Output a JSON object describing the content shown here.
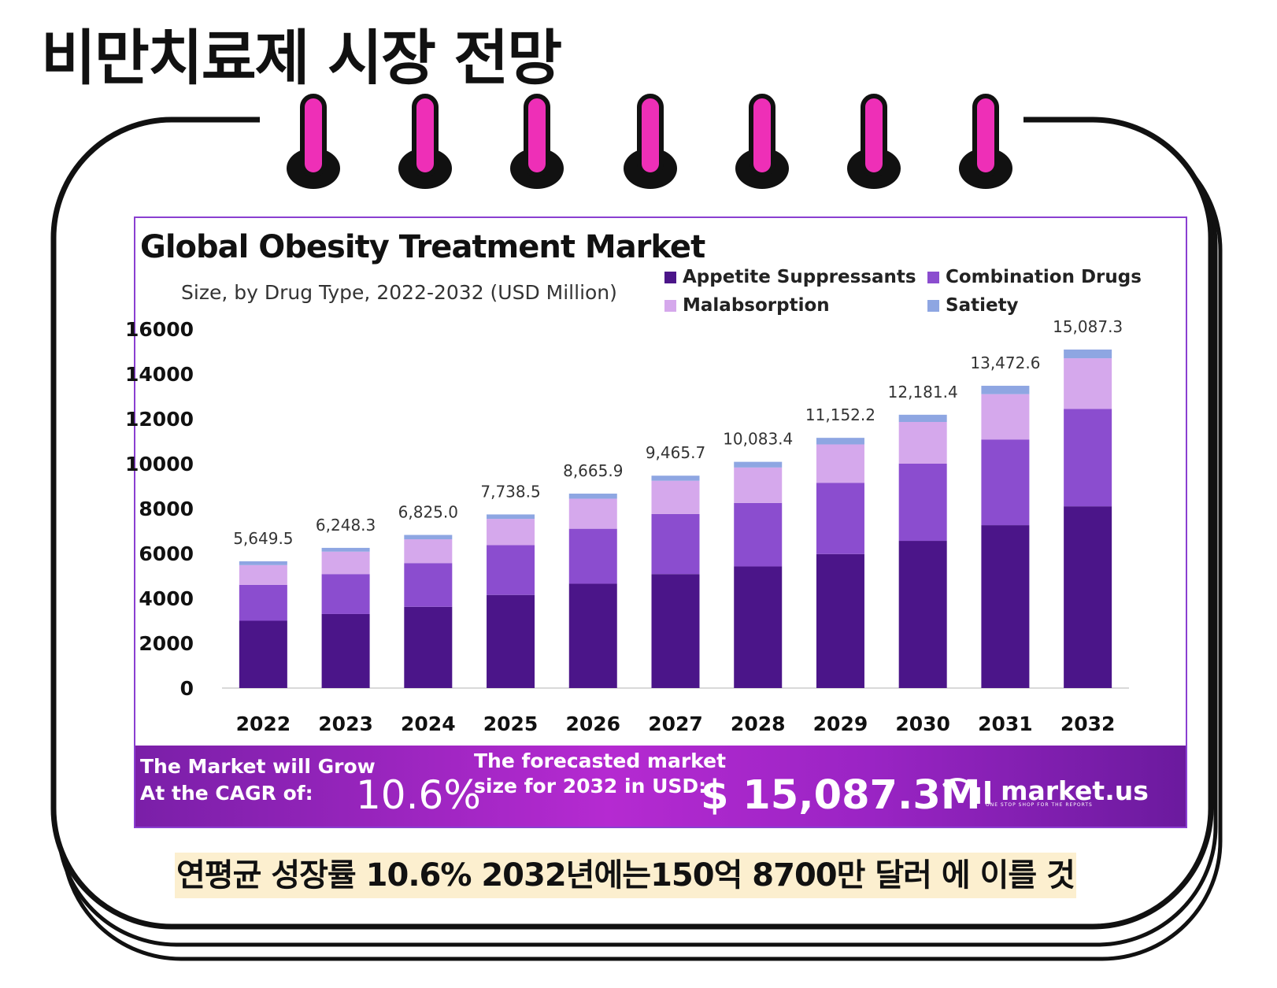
{
  "page": {
    "title": "비만치료제 시장 전망",
    "caption": "연평균 성장률 10.6% 2032년에는150억 8700만 달러 에 이를 것"
  },
  "chart": {
    "title": "Global Obesity Treatment Market",
    "subtitle": "Size, by Drug Type, 2022-2032 (USD Million)"
  },
  "banner": {
    "cagr_label": "The Market will Grow At the CAGR of:",
    "cagr_value": "10.6%",
    "forecast_label": "The forecasted market size for 2032 in USD:",
    "forecast_value": "$ 15,087.3M",
    "brand_name": "market.us",
    "brand_tagline": "ONE STOP SHOP FOR THE REPORTS"
  },
  "colors": {
    "appetite": "#4b1589",
    "combination": "#8b4dcf",
    "malabsorption": "#d5a8ec",
    "satiety": "#8ea6e2",
    "ring_pin": "#ee2fb7",
    "banner": "#a62cc9"
  },
  "chart_data": {
    "type": "bar",
    "stacked": true,
    "title": "Global Obesity Treatment Market",
    "subtitle": "Size, by Drug Type, 2022-2032 (USD Million)",
    "xlabel": "",
    "ylabel": "",
    "categories": [
      "2022",
      "2023",
      "2024",
      "2025",
      "2026",
      "2027",
      "2028",
      "2029",
      "2030",
      "2031",
      "2032"
    ],
    "ylim": [
      0,
      16000
    ],
    "yticks": [
      "0",
      "2000",
      "4000",
      "6000",
      "8000",
      "10000",
      "12000",
      "14000",
      "16000"
    ],
    "legend_position": "top-right",
    "grid": false,
    "series": [
      {
        "name": "Appetite Suppressants",
        "values": [
          3000,
          3300,
          3620,
          4150,
          4650,
          5080,
          5420,
          5970,
          6560,
          7260,
          8100
        ]
      },
      {
        "name": "Combination Drugs",
        "values": [
          1600,
          1780,
          1950,
          2220,
          2450,
          2680,
          2830,
          3180,
          3440,
          3820,
          4340
        ]
      },
      {
        "name": "Malabsorption",
        "values": [
          880,
          1000,
          1060,
          1170,
          1340,
          1480,
          1580,
          1710,
          1860,
          2020,
          2260
        ]
      },
      {
        "name": "Satiety",
        "values": [
          169.5,
          168.3,
          195,
          198.5,
          225.9,
          225.7,
          253.4,
          292.2,
          321.4,
          372.6,
          387.3
        ]
      }
    ],
    "totals": [
      5649.5,
      6248.3,
      6825.0,
      7738.5,
      8665.9,
      9465.7,
      10083.4,
      11152.2,
      12181.4,
      13472.6,
      15087.3
    ],
    "total_labels": [
      "5,649.5",
      "6,248.3",
      "6,825.0",
      "7,738.5",
      "8,665.9",
      "9,465.7",
      "10,083.4",
      "11,152.2",
      "12,181.4",
      "13,472.6",
      "15,087.3"
    ]
  }
}
